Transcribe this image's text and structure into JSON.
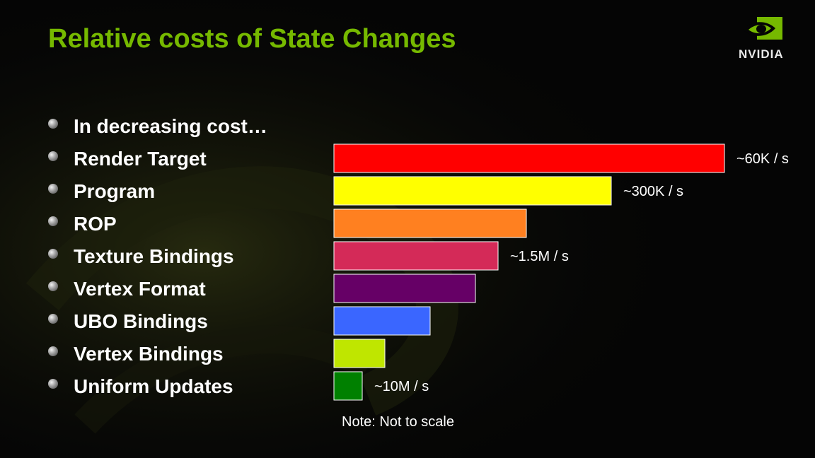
{
  "slide": {
    "title": "Relative costs of State Changes",
    "brand": "NVIDIA",
    "intro_bullet": "In decreasing cost…",
    "note": "Note: Not to scale"
  },
  "colors": {
    "title": "#76b900",
    "background": "#050505"
  },
  "chart_data": {
    "type": "bar",
    "orientation": "horizontal",
    "categories": [
      "Render Target",
      "Program",
      "ROP",
      "Texture Bindings",
      "Vertex Format",
      "UBO Bindings",
      "Vertex Bindings",
      "Uniform Updates"
    ],
    "values": [
      13.8,
      9.8,
      6.8,
      5.8,
      5.0,
      3.4,
      1.8,
      1.0
    ],
    "colors": [
      "#ff0000",
      "#ffff00",
      "#ff8020",
      "#d42a58",
      "#660066",
      "#3a66ff",
      "#bfe600",
      "#008000"
    ],
    "annotations": [
      {
        "category": "Render Target",
        "text": "~60K / s"
      },
      {
        "category": "Program",
        "text": "~300K / s"
      },
      {
        "category": "Texture Bindings",
        "text": "~1.5M / s"
      },
      {
        "category": "Uniform Updates",
        "text": "~10M / s"
      }
    ],
    "title": "",
    "xlabel": "",
    "ylabel": "",
    "legend": "none",
    "grid": false
  }
}
